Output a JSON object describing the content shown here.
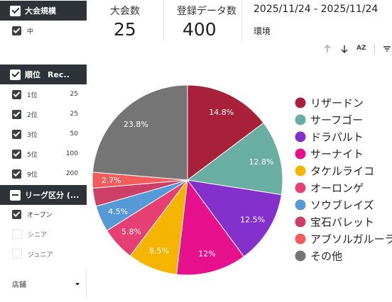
{
  "filters": {
    "scale": {
      "title": "大会規模",
      "items": [
        {
          "label": "中",
          "checked": true
        }
      ]
    },
    "rank": {
      "title": "順位",
      "col2": "Rec...",
      "items": [
        {
          "label": "1位",
          "value": "25",
          "checked": true
        },
        {
          "label": "2位",
          "value": "25",
          "checked": true
        },
        {
          "label": "3位",
          "value": "50",
          "checked": true
        },
        {
          "label": "5位",
          "value": "100",
          "checked": true
        },
        {
          "label": "9位",
          "value": "200",
          "checked": true
        }
      ]
    },
    "league": {
      "title": "リーグ区分 (...",
      "items": [
        {
          "label": "オープン",
          "checked": true
        },
        {
          "label": "シニア",
          "checked": false
        },
        {
          "label": "ジュニア",
          "checked": false
        }
      ]
    },
    "store": {
      "label": "店舗"
    }
  },
  "scorecards": {
    "tournaments": {
      "label": "大会数",
      "value": "25"
    },
    "records": {
      "label": "登録データ数",
      "value": "400"
    }
  },
  "date_range": "2025/11/24 - 2025/11/24",
  "environment_label": "環境",
  "toolbar": {
    "up_icon": "arrow-up-icon",
    "down_icon": "arrow-down-icon",
    "sort_icon": "az-sort-icon",
    "filter_icon": "filter-icon",
    "sort_text": "AZ"
  },
  "chart_data": {
    "type": "pie",
    "series": [
      {
        "name": "リザードン",
        "value": 14.8,
        "label": "14.8%",
        "color": "#a8203a"
      },
      {
        "name": "サーフゴー",
        "value": 12.8,
        "label": "12.8%",
        "color": "#6aaea2"
      },
      {
        "name": "ドラパルト",
        "value": 12.5,
        "label": "12.5%",
        "color": "#8430cc"
      },
      {
        "name": "サーナイト",
        "value": 12.0,
        "label": "12%",
        "color": "#e8118d"
      },
      {
        "name": "タケルライコ",
        "value": 8.5,
        "label": "8.5%",
        "color": "#f4b400"
      },
      {
        "name": "オーロンゲ",
        "value": 5.8,
        "label": "5.8%",
        "color": "#e53f73"
      },
      {
        "name": "ソウブレイズ",
        "value": 4.5,
        "label": "4.5%",
        "color": "#5599d6"
      },
      {
        "name": "宝石バレット",
        "value": 3.1,
        "label": "",
        "color": "#cc3f66"
      },
      {
        "name": "アブソルガルーラ",
        "value": 2.7,
        "label": "2.7%",
        "color": "#f25c5c"
      },
      {
        "name": "その他",
        "value": 23.8,
        "label": "23.8%",
        "color": "#757575"
      }
    ],
    "legend": "right"
  }
}
